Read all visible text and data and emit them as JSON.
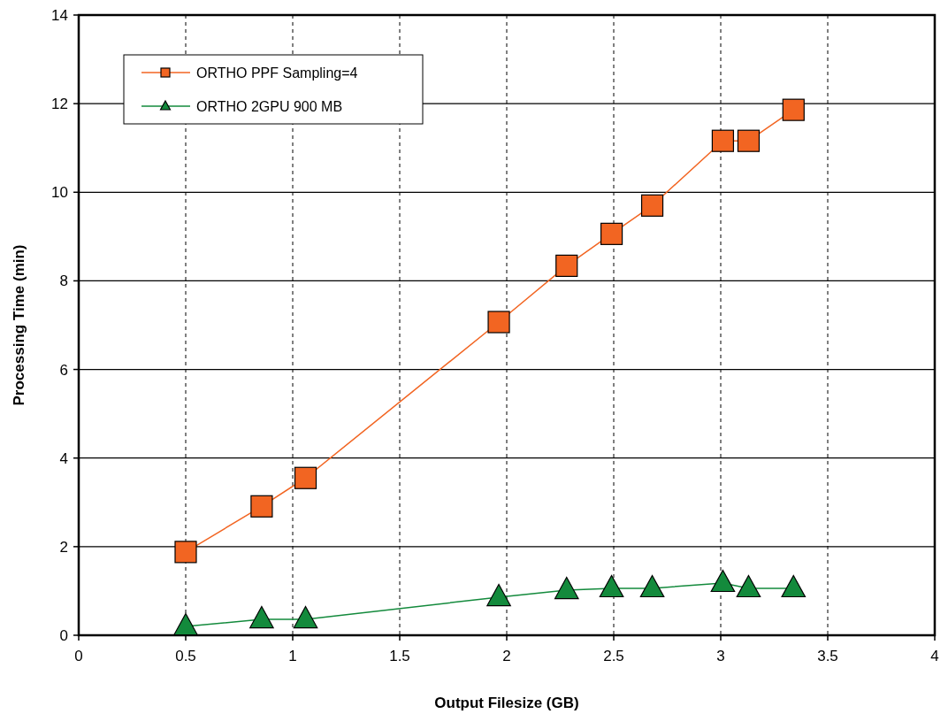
{
  "chart_data": {
    "type": "line",
    "xlabel": "Output Filesize (GB)",
    "ylabel": "Processing Time (min)",
    "xlim": [
      0,
      4
    ],
    "xticks": [
      0,
      0.5,
      1,
      1.5,
      2,
      2.5,
      3,
      3.5,
      4
    ],
    "ylim": [
      0,
      14
    ],
    "yticks": [
      0,
      2,
      4,
      6,
      8,
      10,
      12,
      14
    ],
    "grid": true,
    "legend": "top left",
    "series": [
      {
        "name": "ORTHO PPF Sampling=4",
        "color": "#f26522",
        "marker": "square",
        "x": [
          0.5,
          0.855,
          1.06,
          1.963,
          2.28,
          2.49,
          2.68,
          3.01,
          3.13,
          3.34
        ],
        "values": [
          1.88,
          2.91,
          3.55,
          7.07,
          8.34,
          9.06,
          9.7,
          11.16,
          11.16,
          11.86
        ]
      },
      {
        "name": "ORTHO 2GPU 900 MB",
        "color": "#138a3c",
        "marker": "triangle",
        "x": [
          0.5,
          0.855,
          1.06,
          1.963,
          2.28,
          2.49,
          2.68,
          3.01,
          3.13,
          3.34
        ],
        "values": [
          0.2,
          0.36,
          0.36,
          0.86,
          1.02,
          1.06,
          1.06,
          1.18,
          1.06,
          1.06
        ]
      }
    ]
  }
}
